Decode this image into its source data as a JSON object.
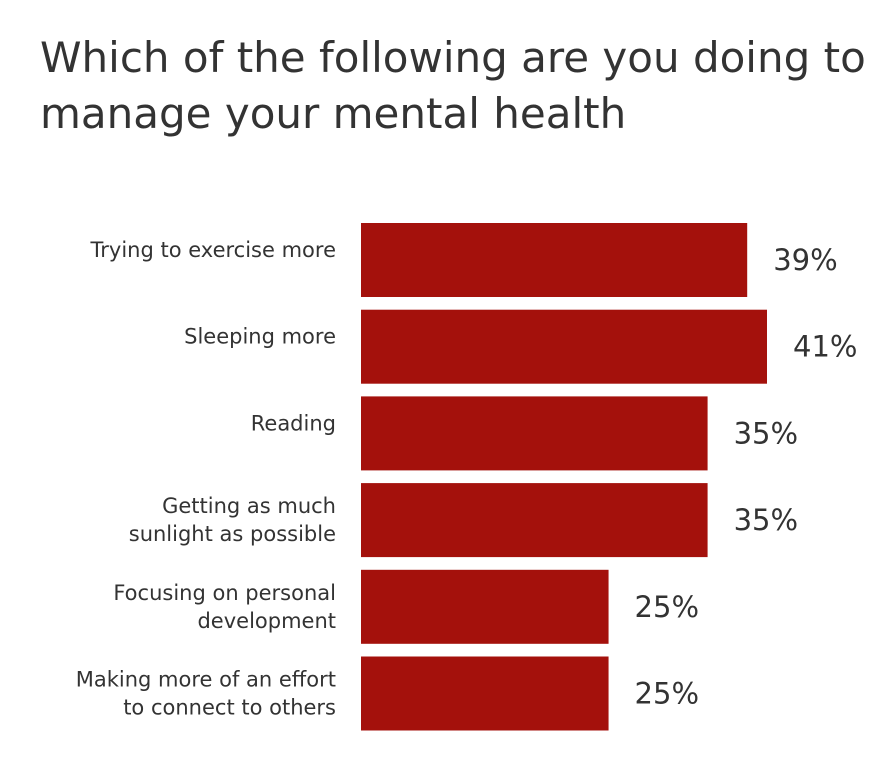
{
  "chart_data": {
    "type": "bar",
    "orientation": "horizontal",
    "title": "Which of the following are you doing to manage your mental health",
    "categories": [
      [
        "Trying to exercise more"
      ],
      [
        "Sleeping more"
      ],
      [
        "Reading"
      ],
      [
        "Getting as much",
        "sunlight as possible"
      ],
      [
        "Focusing on personal",
        "development"
      ],
      [
        "Making more of an effort",
        "to connect to others"
      ]
    ],
    "values": [
      39,
      41,
      35,
      35,
      25,
      25
    ],
    "value_labels": [
      "39%",
      "41%",
      "35%",
      "35%",
      "25%",
      "25%"
    ],
    "xlim": [
      0,
      41
    ],
    "grid": false,
    "legend": "none",
    "bar_color": "#a4110c"
  }
}
